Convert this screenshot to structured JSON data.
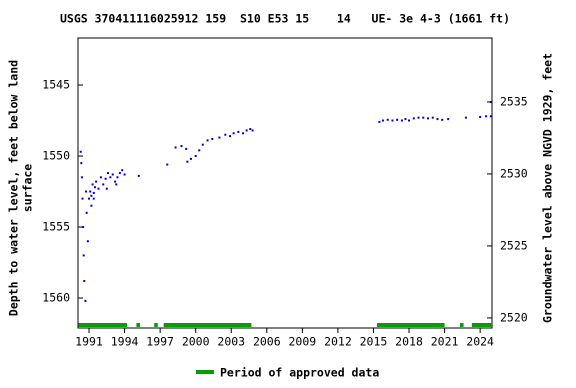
{
  "chart_data": {
    "type": "scatter",
    "title": "USGS 370411116025912 159  S10 E53 15    14   UE- 3e 4-3 (1661 ft)",
    "ylabel": [
      "Depth to water level, feet below land",
      "surface"
    ],
    "y2label": "Groundwater level above NGVD 1929, feet",
    "xlim": [
      1990.07,
      2025.0
    ],
    "xticks": [
      1991,
      1994,
      1997,
      2000,
      2003,
      2006,
      2009,
      2012,
      2015,
      2018,
      2021,
      2024
    ],
    "ylim": [
      1541.69,
      1562.11
    ],
    "yticks": [
      1545,
      1550,
      1555,
      1560
    ],
    "y_inverted": true,
    "y2lim": [
      2539.44,
      2519.3
    ],
    "y2ticks": [
      2520,
      2525,
      2530,
      2535
    ],
    "series": [
      {
        "name": "Depth to water level",
        "color": "#0000cc",
        "x": [
          1990.3,
          1990.35,
          1990.4,
          1990.45,
          1990.5,
          1990.55,
          1990.6,
          1990.7,
          1990.75,
          1990.8,
          1990.9,
          1991.0,
          1991.1,
          1991.2,
          1991.3,
          1991.4,
          1991.5,
          1991.6,
          1991.8,
          1992.0,
          1992.2,
          1992.4,
          1992.6,
          1992.8,
          1993.0,
          1993.2,
          1993.4,
          1993.6,
          1993.8,
          1994.0,
          1991.2,
          1991.4,
          1992.5,
          1993.3,
          1995.2,
          1997.6,
          1998.3,
          1998.8,
          1999.2,
          1999.3,
          1999.6,
          2000.0,
          2000.3,
          2000.6,
          2001.0,
          2001.4,
          2002.0,
          2002.5,
          2002.9,
          2003.2,
          2003.6,
          2004.0,
          2004.3,
          2004.6,
          2004.8,
          2015.5,
          2015.8,
          2016.2,
          2016.6,
          2017.0,
          2017.4,
          2017.7,
          2018.0,
          2018.4,
          2018.8,
          2019.2,
          2019.6,
          2020.0,
          2020.4,
          2020.8,
          2021.3,
          2022.8,
          2024.0,
          2024.5,
          2024.9,
          2024.9
        ],
        "values": [
          1549.7,
          1550.5,
          1551.5,
          1553,
          1555,
          1557,
          1558.8,
          1560.2,
          1552.5,
          1554,
          1556,
          1553,
          1552.5,
          1552.8,
          1552,
          1552.6,
          1552.2,
          1551.8,
          1552.3,
          1551.5,
          1552,
          1551.6,
          1551.2,
          1551.5,
          1551.3,
          1551.8,
          1551.5,
          1551.2,
          1551,
          1551.3,
          1553.5,
          1553,
          1552.3,
          1552,
          1551.4,
          1550.6,
          1549.4,
          1549.3,
          1549.5,
          1550.4,
          1550.2,
          1550,
          1549.6,
          1549.2,
          1548.9,
          1548.8,
          1548.7,
          1548.5,
          1548.6,
          1548.4,
          1548.3,
          1548.4,
          1548.2,
          1548.1,
          1548.2,
          1547.6,
          1547.5,
          1547.45,
          1547.5,
          1547.45,
          1547.5,
          1547.4,
          1547.5,
          1547.35,
          1547.3,
          1547.3,
          1547.35,
          1547.3,
          1547.4,
          1547.45,
          1547.4,
          1547.3,
          1547.25,
          1547.2,
          1547.2,
          1546.2
        ]
      }
    ],
    "approved_periods": {
      "name": "Period of approved data",
      "color": "#00a000",
      "ranges": [
        [
          1990.1,
          1994.2
        ],
        [
          1995.0,
          1995.3
        ],
        [
          1996.5,
          1996.8
        ],
        [
          1997.3,
          2004.7
        ],
        [
          2015.3,
          2021.0
        ],
        [
          2022.3,
          2022.6
        ],
        [
          2023.3,
          2025.0
        ]
      ]
    }
  }
}
